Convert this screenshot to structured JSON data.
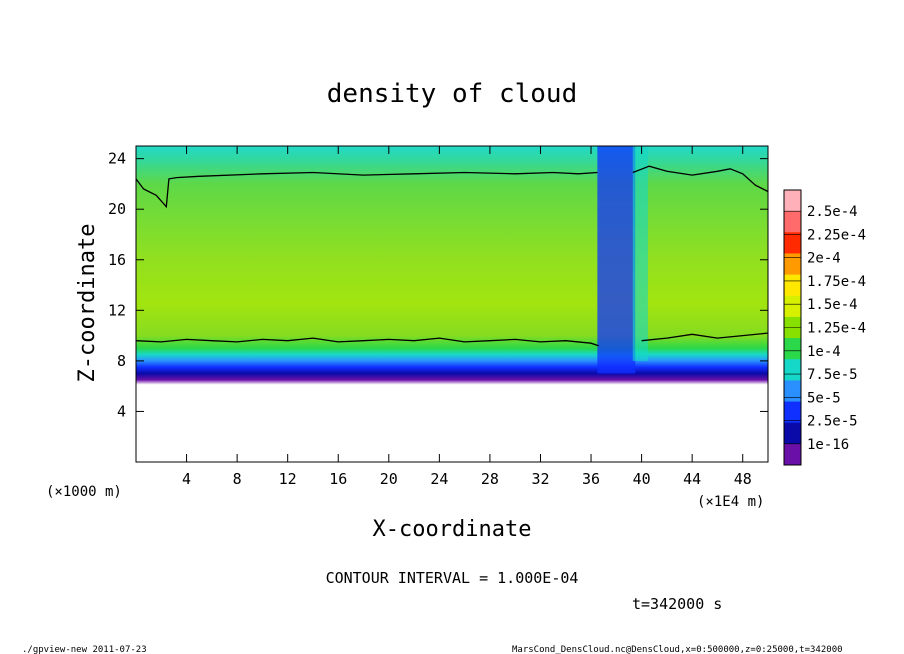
{
  "chart_data": {
    "type": "heatmap",
    "title": "density of cloud",
    "xlabel": "X-coordinate",
    "ylabel": "Z-coordinate",
    "x_unit_left": "(×1000 m)",
    "x_unit_right": "(×1E4 m)",
    "xlim": [
      0,
      50
    ],
    "ylim": [
      0,
      25
    ],
    "x_ticks": [
      4,
      8,
      12,
      16,
      20,
      24,
      28,
      32,
      36,
      40,
      44,
      48
    ],
    "y_ticks": [
      4,
      8,
      12,
      16,
      20,
      24
    ],
    "colorbar": {
      "labels": [
        "2.5e-4",
        "2.25e-4",
        "2e-4",
        "1.75e-4",
        "1.5e-4",
        "1.25e-4",
        "1e-4",
        "7.5e-5",
        "5e-5",
        "2.5e-5",
        "1e-16"
      ],
      "colors": [
        "#ffb0b8",
        "#ff6a6a",
        "#ff2a00",
        "#ff9a00",
        "#ffe800",
        "#d6f000",
        "#88e000",
        "#2ad84a",
        "#16d8c8",
        "#2a90ff",
        "#1030ff",
        "#0a0aa8",
        "#6a10a8"
      ]
    },
    "series": [
      {
        "name": "contour-upper",
        "x": [
          0,
          0.6,
          1.6,
          2.4,
          2.6,
          3.2,
          5,
          10,
          14,
          18,
          22,
          26,
          30,
          33,
          35,
          36.5
        ],
        "y": [
          22.4,
          21.6,
          21.1,
          20.2,
          22.4,
          22.5,
          22.6,
          22.8,
          22.9,
          22.7,
          22.8,
          22.9,
          22.8,
          22.9,
          22.8,
          22.9
        ]
      },
      {
        "name": "contour-upper-right",
        "x": [
          39.3,
          40.6,
          42,
          44,
          46,
          47,
          48,
          49,
          50
        ],
        "y": [
          22.9,
          23.4,
          23.0,
          22.7,
          23.0,
          23.2,
          22.8,
          21.9,
          21.4
        ]
      },
      {
        "name": "contour-lower",
        "x": [
          0,
          2,
          4,
          6,
          8,
          10,
          12,
          14,
          16,
          18,
          20,
          22,
          24,
          26,
          28,
          30,
          32,
          34,
          36,
          36.6
        ],
        "y": [
          9.6,
          9.5,
          9.7,
          9.6,
          9.5,
          9.7,
          9.6,
          9.8,
          9.5,
          9.6,
          9.7,
          9.6,
          9.8,
          9.5,
          9.6,
          9.7,
          9.5,
          9.6,
          9.4,
          9.2
        ]
      },
      {
        "name": "contour-lower-right",
        "x": [
          40,
          42,
          44,
          46,
          48,
          50
        ],
        "y": [
          9.6,
          9.8,
          10.1,
          9.8,
          10.0,
          10.2
        ]
      }
    ],
    "contour_interval": "CONTOUR INTERVAL = 1.000E-04",
    "time_label": "t=342000 s"
  },
  "footer": {
    "left": "./gpview-new  2011-07-23",
    "right": "MarsCond_DensCloud.nc@DensCloud,x=0:500000,z=0:25000,t=342000"
  }
}
